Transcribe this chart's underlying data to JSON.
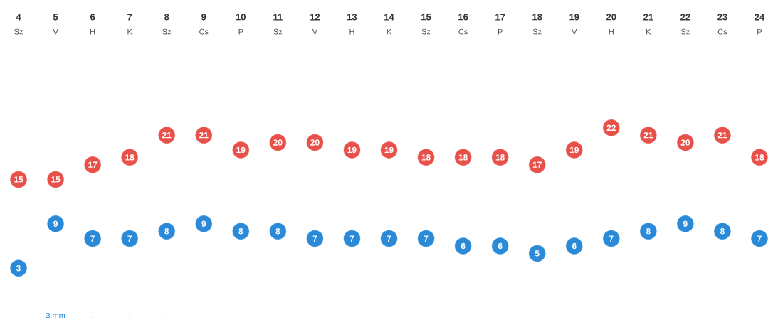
{
  "chart_data": {
    "type": "scatter",
    "categories": [
      "4",
      "5",
      "6",
      "7",
      "8",
      "9",
      "10",
      "11",
      "12",
      "13",
      "14",
      "15",
      "16",
      "17",
      "18",
      "19",
      "20",
      "21",
      "22",
      "23",
      "24"
    ],
    "series": [
      {
        "color": "#e8504a",
        "values": [
          15,
          15,
          17,
          18,
          21,
          21,
          19,
          20,
          20,
          19,
          19,
          18,
          18,
          18,
          17,
          19,
          22,
          21,
          20,
          21,
          18
        ]
      },
      {
        "color": "#2a8ad8",
        "values": [
          3,
          9,
          7,
          7,
          8,
          9,
          8,
          8,
          7,
          7,
          7,
          7,
          6,
          6,
          5,
          6,
          7,
          8,
          9,
          8,
          7
        ]
      }
    ],
    "marker": "circle",
    "data_labels": true,
    "annotations": [
      "Sz",
      "V",
      "H",
      "K",
      "Sz",
      "Cs",
      "P",
      "Sz",
      "V",
      "H",
      "K",
      "Sz",
      "Cs",
      "P",
      "Sz",
      "V",
      "H",
      "K",
      "Sz",
      "Cs",
      "P",
      "3 mm",
      ".",
      ".",
      "."
    ]
  }
}
